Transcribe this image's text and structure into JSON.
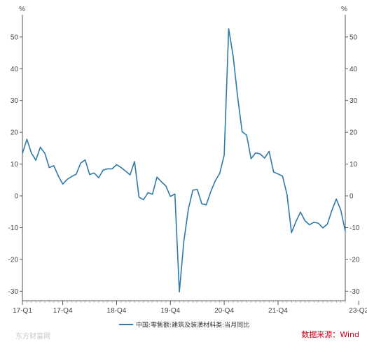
{
  "chart_data": {
    "type": "line",
    "y_unit_left": "%",
    "y_unit_right": "%",
    "ylim": [
      -33,
      57
    ],
    "yticks": [
      -30,
      -20,
      -10,
      0,
      10,
      20,
      30,
      40,
      50
    ],
    "grid": false,
    "legend_position": "bottom",
    "x_tick_labels": [
      "17-Q1",
      "17-Q4",
      "18-Q4",
      "19-Q4",
      "20-Q4",
      "21-Q4",
      "23-Q2"
    ],
    "x_tick_months": [
      0,
      9,
      21,
      33,
      45,
      57,
      75
    ],
    "series": [
      {
        "name": "中国:零售额:建筑及装潢材料类:当月同比",
        "color": "#2e7ba6",
        "values": [
          13.3,
          17.8,
          13.5,
          11.2,
          15.3,
          13.4,
          8.9,
          9.5,
          6.3,
          3.7,
          5.2,
          6.1,
          6.8,
          10.3,
          11.3,
          6.7,
          7.2,
          5.7,
          8.1,
          8.5,
          8.5,
          9.8,
          8.9,
          7.8,
          6.6,
          10.8,
          -0.4,
          -1.2,
          1.0,
          0.5,
          5.9,
          4.4,
          3.1,
          -0.2,
          0.6,
          -30.2,
          -14.3,
          -4.2,
          1.8,
          2.0,
          -2.5,
          -2.8,
          1.3,
          4.7,
          7.1,
          12.8,
          52.6,
          43.9,
          31.1,
          20.2,
          19.1,
          11.7,
          13.5,
          13.2,
          11.9,
          14.0,
          7.5,
          6.9,
          6.2,
          0.4,
          -11.6,
          -8.1,
          -5.1,
          -7.8,
          -9.1,
          -8.3,
          -8.6,
          -10.1,
          -8.9,
          -4.6,
          -1.0,
          -4.5,
          -11.1
        ]
      }
    ]
  },
  "legend": {
    "label": "中国:零售额:建筑及装潢材料类:当月同比"
  },
  "source": {
    "text": "数据来源：Wind"
  },
  "watermark": {
    "text": "东方财富网"
  }
}
